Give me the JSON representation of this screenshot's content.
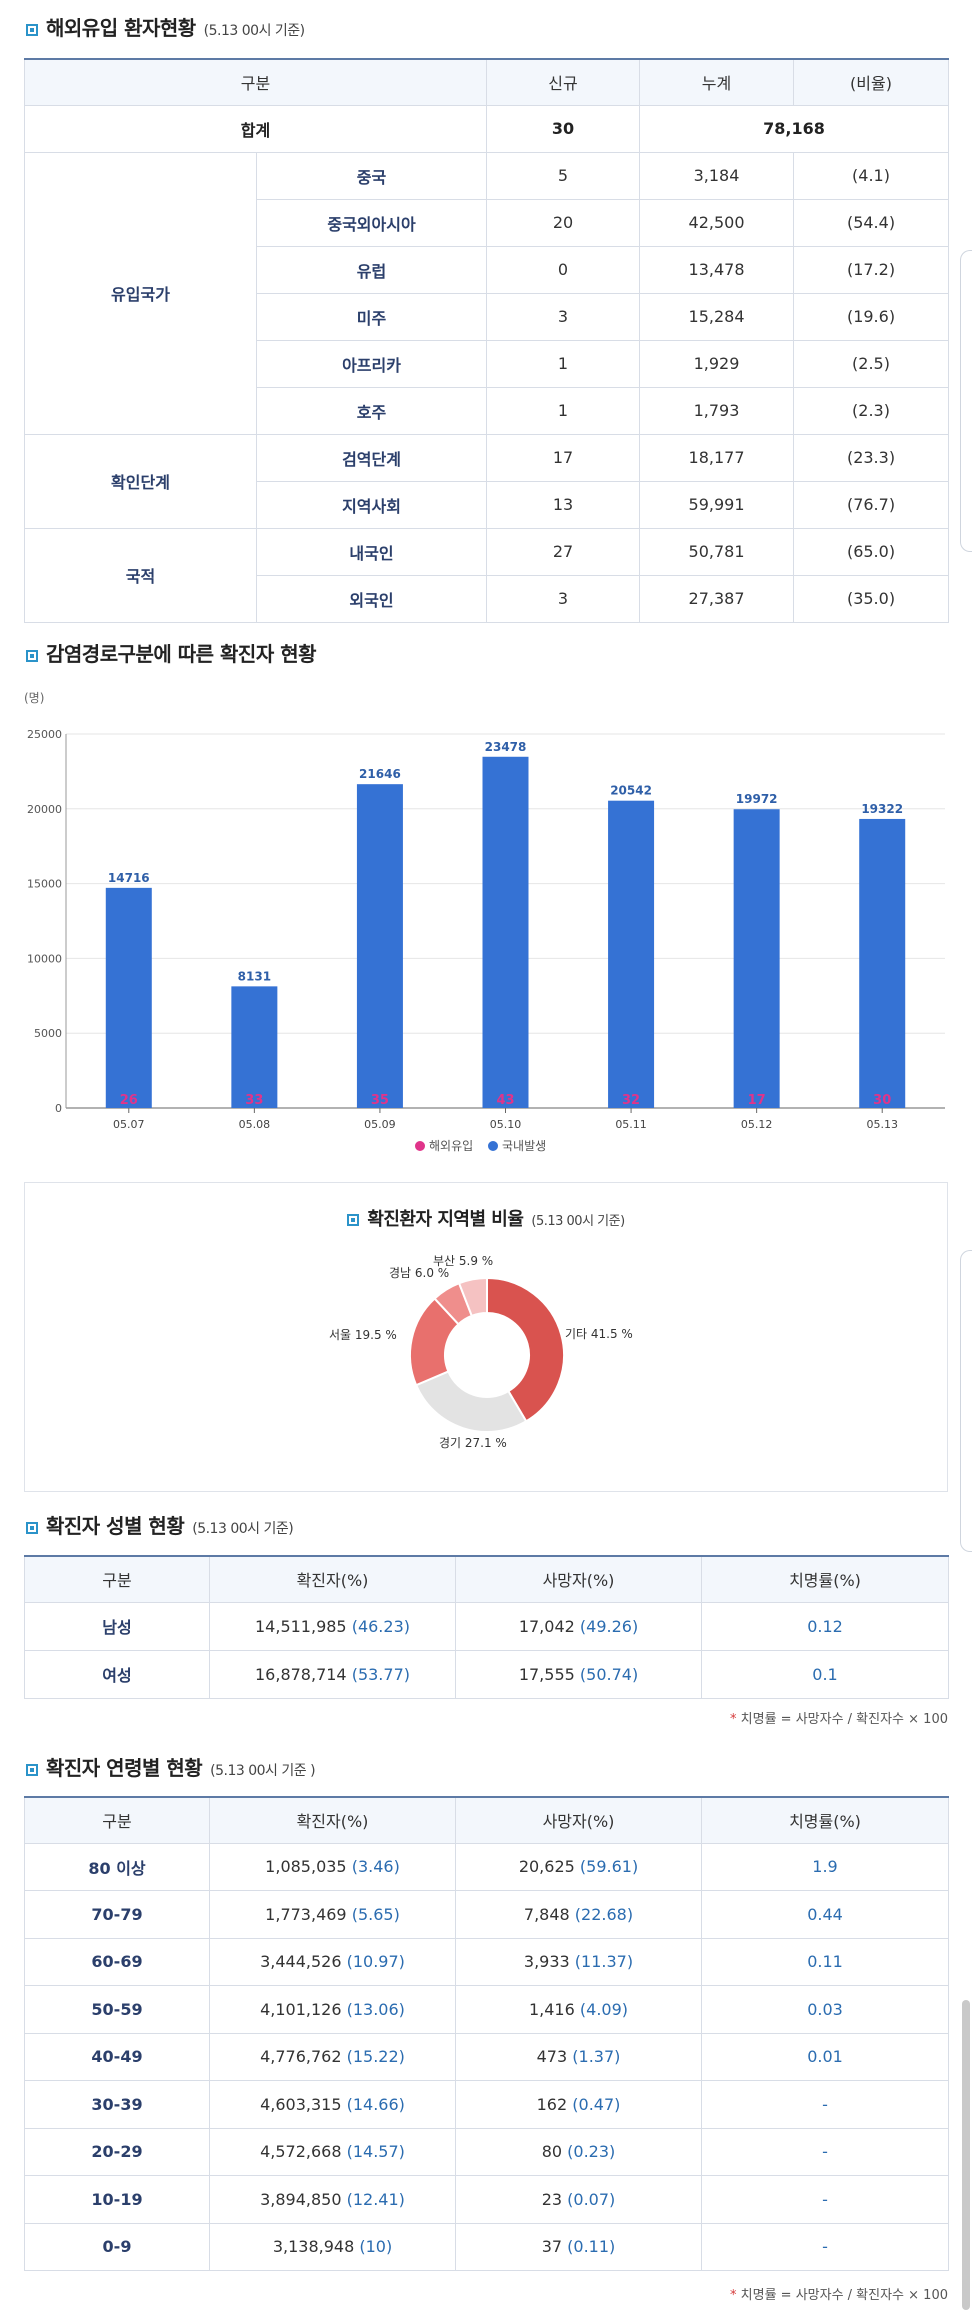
{
  "overseas": {
    "title": "해외유입 환자현황",
    "subtitle": "(5.13 00시 기준)",
    "headers": [
      "구분",
      "신규",
      "누계",
      "(비율)"
    ],
    "total": {
      "label": "합계",
      "new": "30",
      "cum": "78,168"
    },
    "groups": [
      {
        "name": "유입국가",
        "rows": [
          {
            "label": "중국",
            "new": "5",
            "cum": "3,184",
            "ratio": "(4.1)"
          },
          {
            "label": "중국외아시아",
            "new": "20",
            "cum": "42,500",
            "ratio": "(54.4)"
          },
          {
            "label": "유럽",
            "new": "0",
            "cum": "13,478",
            "ratio": "(17.2)"
          },
          {
            "label": "미주",
            "new": "3",
            "cum": "15,284",
            "ratio": "(19.6)"
          },
          {
            "label": "아프리카",
            "new": "1",
            "cum": "1,929",
            "ratio": "(2.5)"
          },
          {
            "label": "호주",
            "new": "1",
            "cum": "1,793",
            "ratio": "(2.3)"
          }
        ]
      },
      {
        "name": "확인단계",
        "rows": [
          {
            "label": "검역단계",
            "new": "17",
            "cum": "18,177",
            "ratio": "(23.3)"
          },
          {
            "label": "지역사회",
            "new": "13",
            "cum": "59,991",
            "ratio": "(76.7)"
          }
        ]
      },
      {
        "name": "국적",
        "rows": [
          {
            "label": "내국인",
            "new": "27",
            "cum": "50,781",
            "ratio": "(65.0)"
          },
          {
            "label": "외국인",
            "new": "3",
            "cum": "27,387",
            "ratio": "(35.0)"
          }
        ]
      }
    ]
  },
  "route_chart": {
    "title": "감염경로구분에 따른 확진자 현황",
    "unit": "(명)",
    "chart_data": {
      "type": "bar",
      "categories": [
        "05.07",
        "05.08",
        "05.09",
        "05.10",
        "05.11",
        "05.12",
        "05.13"
      ],
      "series": [
        {
          "name": "해외유입",
          "values": [
            26,
            33,
            35,
            43,
            32,
            17,
            30
          ],
          "color": "#e0348a"
        },
        {
          "name": "국내발생",
          "values": [
            14716,
            8131,
            21646,
            23478,
            20542,
            19972,
            19322
          ],
          "color": "#3572d4"
        }
      ],
      "yticks": [
        "0",
        "5000",
        "10000",
        "15000",
        "20000",
        "25000"
      ],
      "ylim": [
        0,
        25000
      ],
      "legend": "bottom",
      "grid": true
    }
  },
  "region_chart": {
    "title": "확진환자 지역별 비율",
    "subtitle": "(5.13 00시 기준)",
    "chart_data": {
      "type": "pie",
      "slices": [
        {
          "label": "기타",
          "value": 41.5,
          "text": "기타 41.5 %",
          "color": "#d9534f"
        },
        {
          "label": "경기",
          "value": 27.1,
          "text": "경기 27.1 %",
          "color": "#e3e3e3"
        },
        {
          "label": "서울",
          "value": 19.5,
          "text": "서울 19.5 %",
          "color": "#e8706d"
        },
        {
          "label": "경남",
          "value": 6.0,
          "text": "경남 6.0 %",
          "color": "#ef8e8c"
        },
        {
          "label": "부산",
          "value": 5.9,
          "text": "부산 5.9 %",
          "color": "#f5c2c2"
        }
      ]
    }
  },
  "gender": {
    "title": "확진자 성별 현황",
    "subtitle": "(5.13 00시 기준)",
    "headers": [
      "구분",
      "확진자(%)",
      "사망자(%)",
      "치명률(%)"
    ],
    "rows": [
      {
        "label": "남성",
        "conf": "14,511,985",
        "conf_pct": "(46.23)",
        "death": "17,042",
        "death_pct": "(49.26)",
        "fatal": "0.12"
      },
      {
        "label": "여성",
        "conf": "16,878,714",
        "conf_pct": "(53.77)",
        "death": "17,555",
        "death_pct": "(50.74)",
        "fatal": "0.1"
      }
    ],
    "note": "치명률 = 사망자수 / 확진자수 × 100"
  },
  "age": {
    "title": "확진자 연령별 현황",
    "subtitle": "(5.13 00시 기준 )",
    "headers": [
      "구분",
      "확진자(%)",
      "사망자(%)",
      "치명률(%)"
    ],
    "rows": [
      {
        "label": "80 이상",
        "conf": "1,085,035",
        "conf_pct": "(3.46)",
        "death": "20,625",
        "death_pct": "(59.61)",
        "fatal": "1.9"
      },
      {
        "label": "70-79",
        "conf": "1,773,469",
        "conf_pct": "(5.65)",
        "death": "7,848",
        "death_pct": "(22.68)",
        "fatal": "0.44"
      },
      {
        "label": "60-69",
        "conf": "3,444,526",
        "conf_pct": "(10.97)",
        "death": "3,933",
        "death_pct": "(11.37)",
        "fatal": "0.11"
      },
      {
        "label": "50-59",
        "conf": "4,101,126",
        "conf_pct": "(13.06)",
        "death": "1,416",
        "death_pct": "(4.09)",
        "fatal": "0.03"
      },
      {
        "label": "40-49",
        "conf": "4,776,762",
        "conf_pct": "(15.22)",
        "death": "473",
        "death_pct": "(1.37)",
        "fatal": "0.01"
      },
      {
        "label": "30-39",
        "conf": "4,603,315",
        "conf_pct": "(14.66)",
        "death": "162",
        "death_pct": "(0.47)",
        "fatal": "-"
      },
      {
        "label": "20-29",
        "conf": "4,572,668",
        "conf_pct": "(14.57)",
        "death": "80",
        "death_pct": "(0.23)",
        "fatal": "-"
      },
      {
        "label": "10-19",
        "conf": "3,894,850",
        "conf_pct": "(12.41)",
        "death": "23",
        "death_pct": "(0.07)",
        "fatal": "-"
      },
      {
        "label": "0-9",
        "conf": "3,138,948",
        "conf_pct": "(10)",
        "death": "37",
        "death_pct": "(0.11)",
        "fatal": "-"
      }
    ],
    "note": "치명률 = 사망자수 / 확진자수 × 100"
  }
}
